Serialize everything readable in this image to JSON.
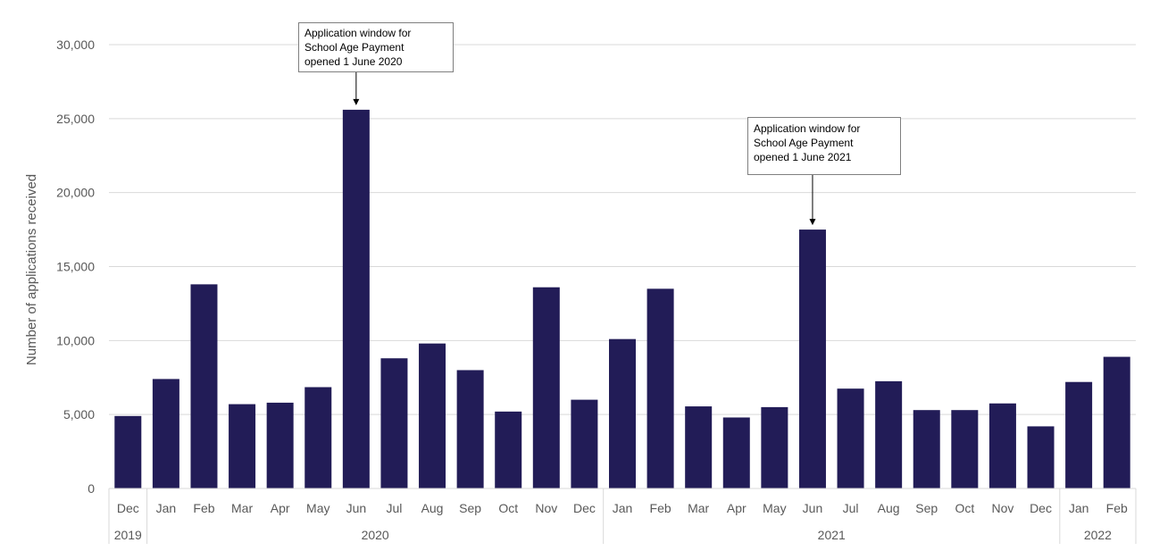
{
  "chart_data": {
    "type": "bar",
    "ylabel": "Number of applications received",
    "ylim": [
      0,
      30000
    ],
    "yticks": [
      0,
      5000,
      10000,
      15000,
      20000,
      25000,
      30000
    ],
    "ytick_labels": [
      "0",
      "5,000",
      "10,000",
      "15,000",
      "20,000",
      "25,000",
      "30,000"
    ],
    "grid": true,
    "bar_color": "#221c57",
    "categories": [
      "Dec",
      "Jan",
      "Feb",
      "Mar",
      "Apr",
      "May",
      "Jun",
      "Jul",
      "Aug",
      "Sep",
      "Oct",
      "Nov",
      "Dec",
      "Jan",
      "Feb",
      "Mar",
      "Apr",
      "May",
      "Jun",
      "Jul",
      "Aug",
      "Sep",
      "Oct",
      "Nov",
      "Dec",
      "Jan",
      "Feb"
    ],
    "values": [
      4900,
      7400,
      13800,
      5700,
      5800,
      6850,
      25600,
      8800,
      9800,
      8000,
      5200,
      13600,
      6000,
      10100,
      13500,
      5550,
      4800,
      5500,
      17500,
      6750,
      7250,
      5300,
      5300,
      5750,
      4200,
      7200,
      8900
    ],
    "year_groups": [
      {
        "label": "2019",
        "start": 0,
        "end": 0
      },
      {
        "label": "2020",
        "start": 1,
        "end": 12
      },
      {
        "label": "2021",
        "start": 13,
        "end": 24
      },
      {
        "label": "2022",
        "start": 25,
        "end": 26
      }
    ],
    "annotations": [
      {
        "target_index": 6,
        "lines": [
          "Application window for",
          "School Age Payment",
          "opened 1 June 2020"
        ]
      },
      {
        "target_index": 18,
        "lines": [
          "Application window for",
          "School Age Payment",
          "opened 1 June 2021"
        ]
      }
    ]
  }
}
